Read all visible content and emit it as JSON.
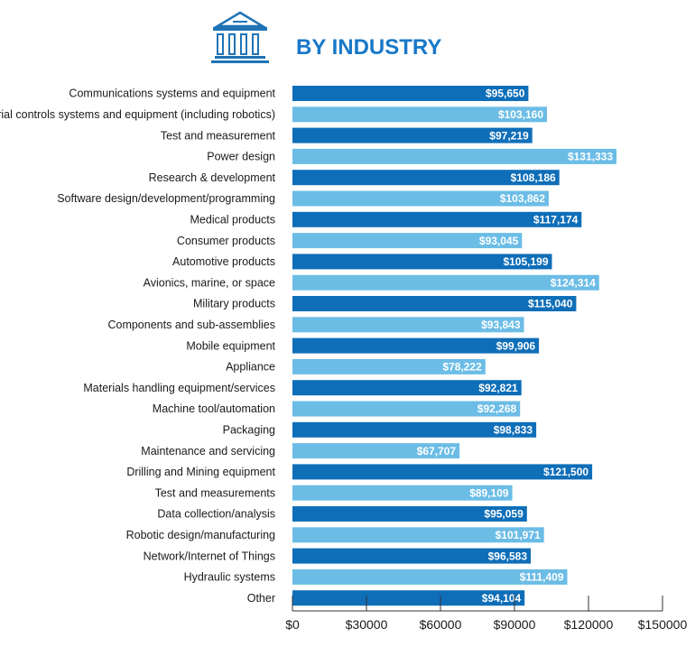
{
  "header": {
    "title": "BY INDUSTRY",
    "icon": "bank-building-icon"
  },
  "colors": {
    "dark_bar": "#0f6eb8",
    "light_bar": "#6cbde6",
    "title": "#1878c8",
    "icon": "#1f73b5"
  },
  "chart_data": {
    "type": "bar",
    "orientation": "horizontal",
    "title": "BY INDUSTRY",
    "categories": [
      "Communications systems and equipment",
      "Industrial controls systems and equipment (including robotics)",
      "Test and measurement",
      "Power design",
      "Research & development",
      "Software design/development/programming",
      "Medical products",
      "Consumer products",
      "Automotive products",
      "Avionics, marine, or space",
      "Military products",
      "Components and sub-assemblies",
      "Mobile equipment",
      "Appliance",
      "Materials handling equipment/services",
      "Machine tool/automation",
      "Packaging",
      "Maintenance and servicing",
      "Drilling and Mining equipment",
      "Test and measurements",
      "Data collection/analysis",
      "Robotic design/manufacturing",
      "Network/Internet of Things",
      "Hydraulic systems",
      "Other"
    ],
    "values": [
      95650,
      103160,
      97219,
      131333,
      108186,
      103862,
      117174,
      93045,
      105199,
      124314,
      115040,
      93843,
      99906,
      78222,
      92821,
      92268,
      98833,
      67707,
      121500,
      89109,
      95059,
      101971,
      96583,
      111409,
      94104
    ],
    "value_labels": [
      "$95,650",
      "$103,160",
      "$97,219",
      "$131,333",
      "$108,186",
      "$103,862",
      "$117,174",
      "$93,045",
      "$105,199",
      "$124,314",
      "$115,040",
      "$93,843",
      "$99,906",
      "$78,222",
      "$92,821",
      "$92,268",
      "$98,833",
      "$67,707",
      "$121,500",
      "$89,109",
      "$95,059",
      "$101,971",
      "$96,583",
      "$111,409",
      "$94,104"
    ],
    "xlim": [
      0,
      150000
    ],
    "xticks": [
      0,
      30000,
      60000,
      90000,
      120000,
      150000
    ],
    "xtick_labels": [
      "$0",
      "$30000",
      "$60000",
      "$90000",
      "$120000",
      "$150000"
    ],
    "bar_colors_alternate": [
      "dark",
      "light"
    ],
    "grid": false,
    "legend": "none"
  }
}
